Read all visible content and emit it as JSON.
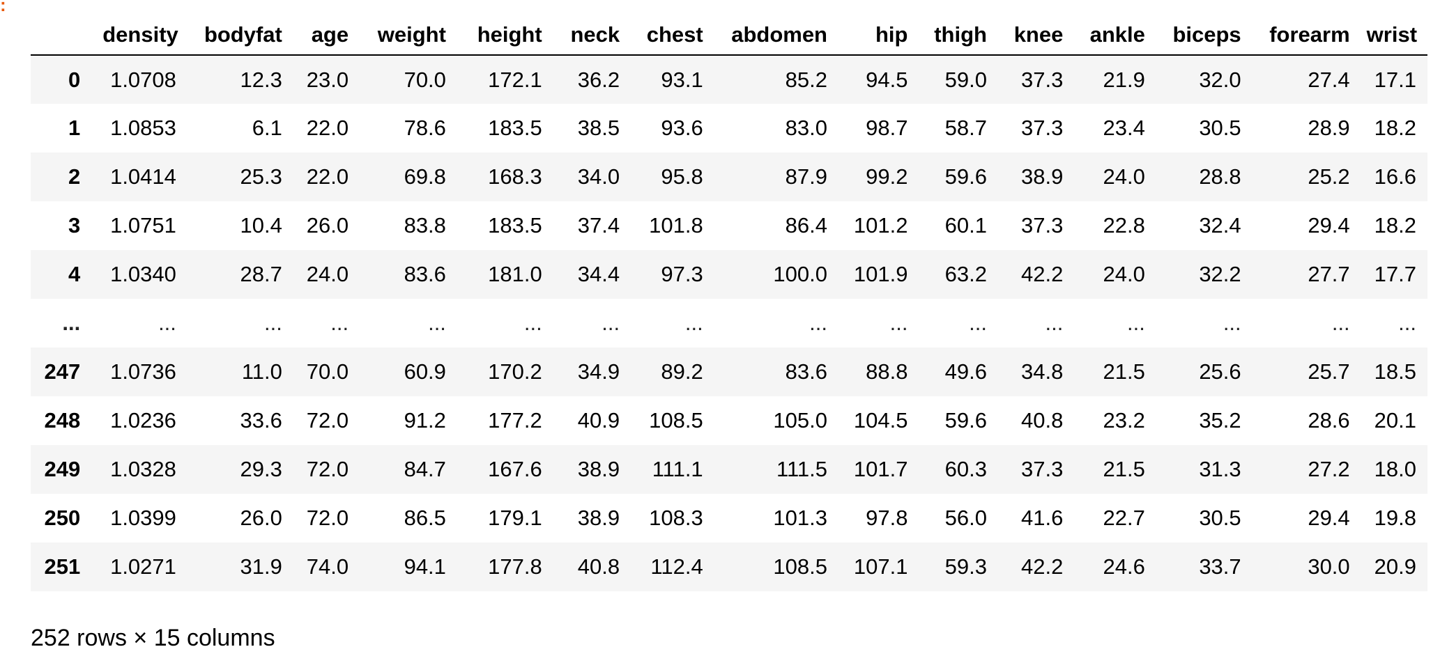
{
  "prompt_marker": ":",
  "table": {
    "index_header": "",
    "columns": [
      "density",
      "bodyfat",
      "age",
      "weight",
      "height",
      "neck",
      "chest",
      "abdomen",
      "hip",
      "thigh",
      "knee",
      "ankle",
      "biceps",
      "forearm",
      "wrist"
    ],
    "rows": [
      {
        "index": "0",
        "values": [
          "1.0708",
          "12.3",
          "23.0",
          "70.0",
          "172.1",
          "36.2",
          "93.1",
          "85.2",
          "94.5",
          "59.0",
          "37.3",
          "21.9",
          "32.0",
          "27.4",
          "17.1"
        ]
      },
      {
        "index": "1",
        "values": [
          "1.0853",
          "6.1",
          "22.0",
          "78.6",
          "183.5",
          "38.5",
          "93.6",
          "83.0",
          "98.7",
          "58.7",
          "37.3",
          "23.4",
          "30.5",
          "28.9",
          "18.2"
        ]
      },
      {
        "index": "2",
        "values": [
          "1.0414",
          "25.3",
          "22.0",
          "69.8",
          "168.3",
          "34.0",
          "95.8",
          "87.9",
          "99.2",
          "59.6",
          "38.9",
          "24.0",
          "28.8",
          "25.2",
          "16.6"
        ]
      },
      {
        "index": "3",
        "values": [
          "1.0751",
          "10.4",
          "26.0",
          "83.8",
          "183.5",
          "37.4",
          "101.8",
          "86.4",
          "101.2",
          "60.1",
          "37.3",
          "22.8",
          "32.4",
          "29.4",
          "18.2"
        ]
      },
      {
        "index": "4",
        "values": [
          "1.0340",
          "28.7",
          "24.0",
          "83.6",
          "181.0",
          "34.4",
          "97.3",
          "100.0",
          "101.9",
          "63.2",
          "42.2",
          "24.0",
          "32.2",
          "27.7",
          "17.7"
        ]
      },
      {
        "index": "...",
        "values": [
          "...",
          "...",
          "...",
          "...",
          "...",
          "...",
          "...",
          "...",
          "...",
          "...",
          "...",
          "...",
          "...",
          "...",
          "..."
        ]
      },
      {
        "index": "247",
        "values": [
          "1.0736",
          "11.0",
          "70.0",
          "60.9",
          "170.2",
          "34.9",
          "89.2",
          "83.6",
          "88.8",
          "49.6",
          "34.8",
          "21.5",
          "25.6",
          "25.7",
          "18.5"
        ]
      },
      {
        "index": "248",
        "values": [
          "1.0236",
          "33.6",
          "72.0",
          "91.2",
          "177.2",
          "40.9",
          "108.5",
          "105.0",
          "104.5",
          "59.6",
          "40.8",
          "23.2",
          "35.2",
          "28.6",
          "20.1"
        ]
      },
      {
        "index": "249",
        "values": [
          "1.0328",
          "29.3",
          "72.0",
          "84.7",
          "167.6",
          "38.9",
          "111.1",
          "111.5",
          "101.7",
          "60.3",
          "37.3",
          "21.5",
          "31.3",
          "27.2",
          "18.0"
        ]
      },
      {
        "index": "250",
        "values": [
          "1.0399",
          "26.0",
          "72.0",
          "86.5",
          "179.1",
          "38.9",
          "108.3",
          "101.3",
          "97.8",
          "56.0",
          "41.6",
          "22.7",
          "30.5",
          "29.4",
          "19.8"
        ]
      },
      {
        "index": "251",
        "values": [
          "1.0271",
          "31.9",
          "74.0",
          "94.1",
          "177.8",
          "40.8",
          "112.4",
          "108.5",
          "107.1",
          "59.3",
          "42.2",
          "24.6",
          "33.7",
          "30.0",
          "20.9"
        ]
      }
    ]
  },
  "shape_caption": "252 rows × 15 columns",
  "colors": {
    "stripe": "#f5f5f5",
    "prompt_marker": "#e8590c"
  }
}
